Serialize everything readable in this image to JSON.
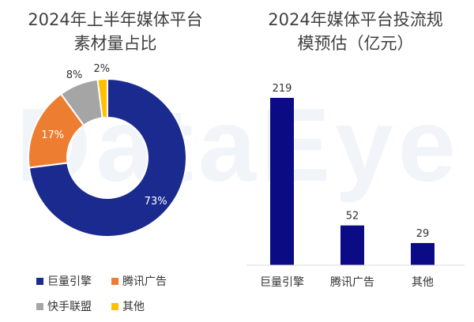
{
  "watermark": "DataEye",
  "chart_data": [
    {
      "type": "pie",
      "title": "2024年上半年媒体平台素材量占比",
      "title_lines": [
        "2024年上半年媒体平台",
        "素材量占比"
      ],
      "categories": [
        "巨量引擎",
        "腾讯广告",
        "快手联盟",
        "其他"
      ],
      "values": [
        73,
        17,
        8,
        2
      ],
      "labels": [
        "73%",
        "17%",
        "8%",
        "2%"
      ],
      "colors": [
        "#1b2a8e",
        "#ed7d31",
        "#a5a5a5",
        "#ffc000"
      ],
      "legend": "bottom",
      "donut": true
    },
    {
      "type": "bar",
      "title": "2024年媒体平台投流规模预估（亿元）",
      "title_lines": [
        "2024年媒体平台投流规",
        "模预估（亿元）"
      ],
      "categories": [
        "巨量引擎",
        "腾讯广告",
        "其他"
      ],
      "values": [
        219,
        52,
        29
      ],
      "ylim": [
        0,
        219
      ],
      "color": "#0b0b86",
      "grid": false
    }
  ]
}
